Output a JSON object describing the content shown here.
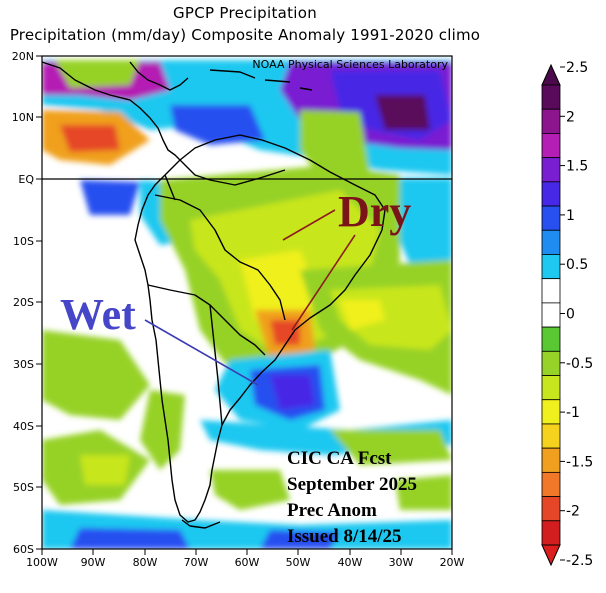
{
  "title": "GPCP Precipitation",
  "subtitle": "Precipitation (mm/day) Composite Anomaly 1991-2020 climo",
  "watermark": "NOAA Physical Sciences Laboratory",
  "lat_labels": [
    "20N",
    "10N",
    "EQ",
    "10S",
    "20S",
    "30S",
    "40S",
    "50S",
    "60S"
  ],
  "lon_labels": [
    "100W",
    "90W",
    "80W",
    "70W",
    "60W",
    "50W",
    "40W",
    "30W",
    "20W"
  ],
  "annotations": {
    "dry": "Dry",
    "wet": "Wet"
  },
  "forecast_text": [
    "CIC CA Fcst",
    "September 2025",
    "Prec Anom",
    "Issued 8/14/25"
  ],
  "colorbar": {
    "unit": "mm/day",
    "labels": [
      "2.5",
      "2",
      "1.5",
      "1",
      "0.5",
      "0",
      "-0.5",
      "-1",
      "-1.5",
      "-2",
      "-2.5"
    ],
    "colors": [
      "#5a0a5a",
      "#8c148c",
      "#b41eb4",
      "#7a1ed2",
      "#4628e6",
      "#2850f0",
      "#1e8cf0",
      "#1ec8f0",
      "#ffffff",
      "#ffffff",
      "#5ac832",
      "#96d228",
      "#c8e61e",
      "#f0f01e",
      "#f5d21e",
      "#f0a01e",
      "#f07828",
      "#e64628",
      "#d21e1e"
    ],
    "arrow_top_color": "#4b0a4b",
    "arrow_bottom_color": "#dc1e1e"
  },
  "chart_data": {
    "type": "map",
    "title": "GPCP Precipitation",
    "subtitle": "Precipitation (mm/day) Composite Anomaly 1991-2020 climo",
    "lat_range": [
      -60,
      20
    ],
    "lon_range": [
      -100,
      -20
    ],
    "value_range": [
      -2.5,
      2.5
    ],
    "annotations": [
      {
        "text": "Dry",
        "points_to": [
          [
            -54,
            -10
          ],
          [
            -50,
            -26
          ]
        ]
      },
      {
        "text": "Wet",
        "points_to": [
          [
            -56,
            -33
          ]
        ]
      }
    ]
  }
}
